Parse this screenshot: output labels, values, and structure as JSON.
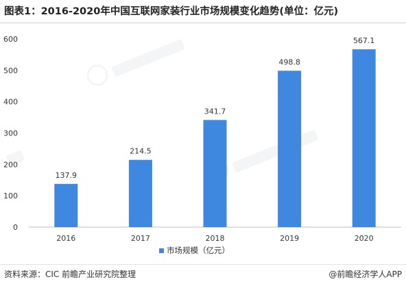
{
  "header": {
    "title": "图表1：2016-2020年中国互联网家装行业市场规模变化趋势(单位：亿元)"
  },
  "footer": {
    "source": "资料来源：CIC 前瞻产业研究院整理",
    "brand": "@前瞻经济学人APP"
  },
  "chart_data": {
    "type": "bar",
    "categories": [
      "2016",
      "2017",
      "2018",
      "2019",
      "2020"
    ],
    "series": [
      {
        "name": "市场规模（亿元）",
        "values": [
          137.9,
          214.5,
          341.7,
          498.8,
          567.1
        ]
      }
    ],
    "value_labels": [
      "137.9",
      "214.5",
      "341.7",
      "498.8",
      "567.1"
    ],
    "yticks": [
      "0",
      "100",
      "200",
      "300",
      "400",
      "500",
      "600"
    ],
    "ylim": [
      0,
      600
    ],
    "bar_color": "#3f88e0",
    "legend_position": "bottom",
    "grid": false
  }
}
